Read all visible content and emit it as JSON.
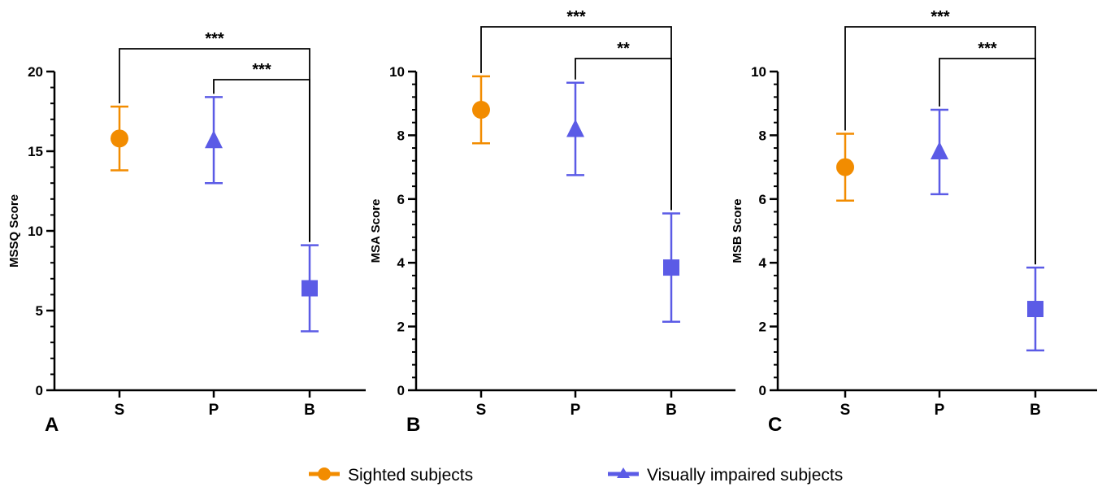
{
  "colors": {
    "sighted": "#F28C00",
    "impaired": "#5B5BE6",
    "axis": "#000000"
  },
  "legend": [
    {
      "label": "Sighted subjects",
      "color": "#F28C00",
      "marker": "circle"
    },
    {
      "label": "Visually impaired subjects",
      "color": "#5B5BE6",
      "marker": "triangle"
    }
  ],
  "chart_data": [
    {
      "type": "scatter",
      "panel": "A",
      "ylabel": "MSSQ Score",
      "ylim": [
        0,
        20
      ],
      "yticks": [
        0,
        5,
        10,
        15,
        20
      ],
      "categories": [
        "S",
        "P",
        "B"
      ],
      "points": [
        {
          "category": "S",
          "mean": 15.8,
          "lower": 13.8,
          "upper": 17.8,
          "marker": "circle",
          "group": "sighted"
        },
        {
          "category": "P",
          "mean": 15.6,
          "lower": 13.0,
          "upper": 18.4,
          "marker": "triangle",
          "group": "impaired"
        },
        {
          "category": "B",
          "mean": 6.4,
          "lower": 3.7,
          "upper": 9.1,
          "marker": "square",
          "group": "impaired"
        }
      ],
      "significance": [
        {
          "from": "S",
          "to": "B",
          "label": "***"
        },
        {
          "from": "P",
          "to": "B",
          "label": "***"
        }
      ]
    },
    {
      "type": "scatter",
      "panel": "B",
      "ylabel": "MSA Score",
      "ylim": [
        0,
        10
      ],
      "yticks": [
        0,
        2,
        4,
        6,
        8,
        10
      ],
      "categories": [
        "S",
        "P",
        "B"
      ],
      "points": [
        {
          "category": "S",
          "mean": 8.8,
          "lower": 7.75,
          "upper": 9.85,
          "marker": "circle",
          "group": "sighted"
        },
        {
          "category": "P",
          "mean": 8.15,
          "lower": 6.75,
          "upper": 9.65,
          "marker": "triangle",
          "group": "impaired"
        },
        {
          "category": "B",
          "mean": 3.85,
          "lower": 2.15,
          "upper": 5.55,
          "marker": "square",
          "group": "impaired"
        }
      ],
      "significance": [
        {
          "from": "S",
          "to": "B",
          "label": "***"
        },
        {
          "from": "P",
          "to": "B",
          "label": "**"
        }
      ]
    },
    {
      "type": "scatter",
      "panel": "C",
      "ylabel": "MSB Score",
      "ylim": [
        0,
        10
      ],
      "yticks": [
        0,
        2,
        4,
        6,
        8,
        10
      ],
      "categories": [
        "S",
        "P",
        "B"
      ],
      "points": [
        {
          "category": "S",
          "mean": 7.0,
          "lower": 5.95,
          "upper": 8.05,
          "marker": "circle",
          "group": "sighted"
        },
        {
          "category": "P",
          "mean": 7.45,
          "lower": 6.15,
          "upper": 8.8,
          "marker": "triangle",
          "group": "impaired"
        },
        {
          "category": "B",
          "mean": 2.55,
          "lower": 1.25,
          "upper": 3.85,
          "marker": "square",
          "group": "impaired"
        }
      ],
      "significance": [
        {
          "from": "S",
          "to": "B",
          "label": "***"
        },
        {
          "from": "P",
          "to": "B",
          "label": "***"
        }
      ]
    }
  ]
}
